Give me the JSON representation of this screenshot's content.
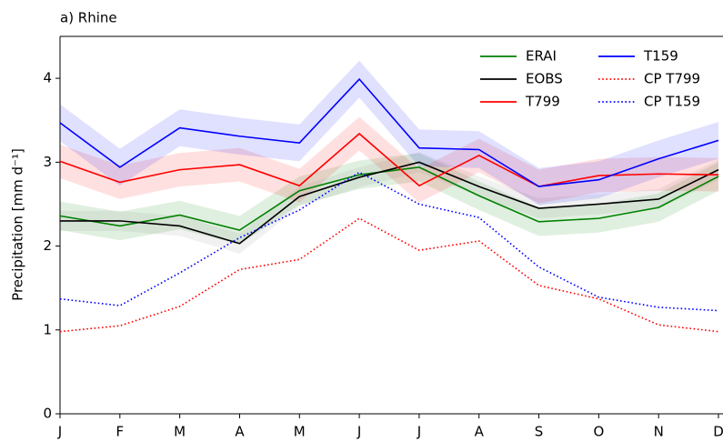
{
  "chart_data": {
    "type": "line",
    "title": "a) Rhine",
    "y_label": "Precipitation [mm d⁻¹]",
    "categories": [
      "J",
      "F",
      "M",
      "A",
      "M",
      "J",
      "J",
      "A",
      "S",
      "O",
      "N",
      "D"
    ],
    "ylim": [
      0,
      4.5
    ],
    "yticks": [
      0,
      1,
      2,
      3,
      4
    ],
    "legend": "upper right",
    "series": [
      {
        "name": "ERAI",
        "color": "#008000",
        "style": "solid",
        "values": [
          2.36,
          2.24,
          2.37,
          2.19,
          2.66,
          2.85,
          2.94,
          2.6,
          2.29,
          2.33,
          2.46,
          2.83
        ],
        "lower": [
          2.19,
          2.07,
          2.2,
          2.02,
          2.49,
          2.68,
          2.77,
          2.43,
          2.12,
          2.16,
          2.29,
          2.66
        ],
        "upper": [
          2.53,
          2.41,
          2.54,
          2.36,
          2.83,
          3.02,
          3.11,
          2.77,
          2.46,
          2.5,
          2.63,
          3.0
        ]
      },
      {
        "name": "EOBS",
        "color": "#000000",
        "style": "solid",
        "values": [
          2.3,
          2.3,
          2.24,
          2.03,
          2.59,
          2.82,
          3.0,
          2.71,
          2.45,
          2.5,
          2.56,
          2.91
        ],
        "lower": [
          2.18,
          2.18,
          2.12,
          1.91,
          2.47,
          2.7,
          2.88,
          2.59,
          2.33,
          2.38,
          2.44,
          2.79
        ],
        "upper": [
          2.42,
          2.42,
          2.36,
          2.15,
          2.71,
          2.94,
          3.12,
          2.83,
          2.57,
          2.62,
          2.68,
          3.03
        ]
      },
      {
        "name": "T799",
        "color": "#ff0000",
        "style": "solid",
        "values": [
          3.01,
          2.76,
          2.91,
          2.97,
          2.72,
          3.34,
          2.72,
          3.08,
          2.71,
          2.84,
          2.86,
          2.85
        ],
        "lower": [
          2.81,
          2.56,
          2.71,
          2.77,
          2.52,
          3.14,
          2.52,
          2.88,
          2.51,
          2.64,
          2.66,
          2.65
        ],
        "upper": [
          3.21,
          2.96,
          3.11,
          3.17,
          2.92,
          3.54,
          2.92,
          3.28,
          2.91,
          3.04,
          3.06,
          3.05
        ]
      },
      {
        "name": "T159",
        "color": "#0000ff",
        "style": "solid",
        "values": [
          3.47,
          2.94,
          3.41,
          3.31,
          3.23,
          3.99,
          3.17,
          3.15,
          2.71,
          2.79,
          3.04,
          3.26
        ],
        "lower": [
          3.25,
          2.72,
          3.19,
          3.09,
          3.01,
          3.77,
          2.95,
          2.93,
          2.49,
          2.57,
          2.82,
          3.04
        ],
        "upper": [
          3.69,
          3.16,
          3.63,
          3.53,
          3.45,
          4.21,
          3.39,
          3.37,
          2.93,
          3.01,
          3.26,
          3.48
        ]
      },
      {
        "name": "CP T799",
        "color": "#ff0000",
        "style": "dotted",
        "values": [
          0.98,
          1.05,
          1.28,
          1.72,
          1.84,
          2.33,
          1.95,
          2.06,
          1.53,
          1.37,
          1.06,
          0.98
        ]
      },
      {
        "name": "CP T159",
        "color": "#0000ff",
        "style": "dotted",
        "values": [
          1.37,
          1.29,
          1.68,
          2.1,
          2.43,
          2.88,
          2.5,
          2.34,
          1.75,
          1.39,
          1.27,
          1.23
        ]
      }
    ]
  }
}
